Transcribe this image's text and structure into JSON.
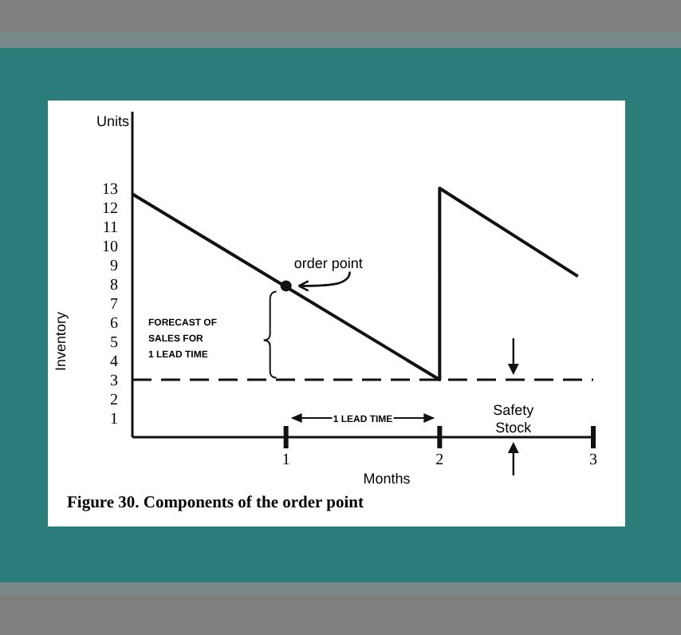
{
  "chart_data": {
    "type": "line",
    "ylabel": "Inventory",
    "xlabel": "Months",
    "series": [
      {
        "color": "#111111",
        "x": [
          0,
          2,
          2,
          2.9
        ],
        "values": [
          12.7,
          3,
          13,
          8.4
        ]
      },
      {
        "type": "scatter",
        "color": "#111111",
        "marker": "circle",
        "x": [
          1
        ],
        "values": [
          7.9
        ]
      }
    ],
    "xlim": [
      0,
      3
    ],
    "xticks": [
      1,
      2,
      3
    ],
    "ylim": [
      0,
      17
    ],
    "yticks": [
      1,
      2,
      3,
      4,
      5,
      6,
      7,
      8,
      9,
      10,
      11,
      12,
      13
    ],
    "grid": false,
    "ref_lines": [
      {
        "axis": "y",
        "value": 3,
        "label": "Safety Stock",
        "line_style": "dashed",
        "color": "#111111"
      }
    ],
    "annotations": [
      "Units",
      {
        "text": "order point",
        "x": 1,
        "y": 7.9
      },
      "FORECAST OF\nSALES FOR\n1 LEAD TIME",
      "1 LEAD TIME",
      "Figure 30.  Components of the order point"
    ]
  }
}
